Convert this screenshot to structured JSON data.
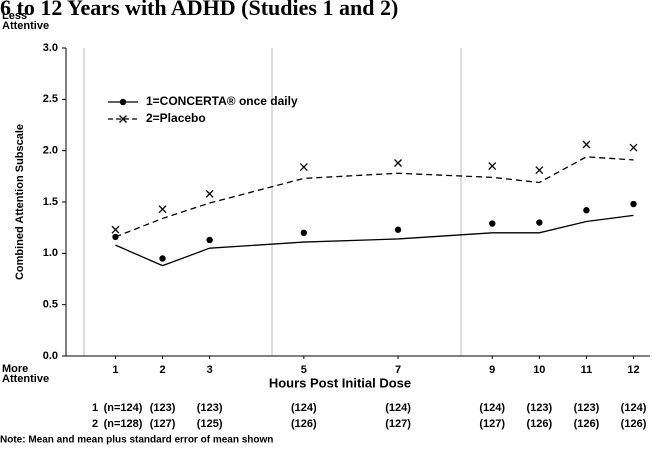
{
  "chart_data": {
    "type": "line",
    "title": "6 to 12 Years with ADHD (Studies 1 and 2)",
    "ylabel": "Combined Attention Subscale",
    "xlabel": "Hours Post Initial Dose",
    "y_top_annotation": "Less Attentive",
    "y_bottom_annotation": "More Attentive",
    "note": "Note:  Mean and mean plus standard error of mean shown",
    "x": [
      1,
      2,
      3,
      5,
      7,
      9,
      10,
      11,
      12
    ],
    "xlim": [
      -0.05,
      12.35
    ],
    "xticks": [
      1,
      2,
      3,
      5,
      7,
      9,
      10,
      11,
      12
    ],
    "ylim": [
      0,
      3
    ],
    "yticks": [
      {
        "value": 0,
        "label": "0.0"
      },
      {
        "value": 0.5,
        "label": "0.5"
      },
      {
        "value": 1,
        "label": "1.0"
      },
      {
        "value": 1.5,
        "label": "1.5"
      },
      {
        "value": 2,
        "label": "2.0"
      },
      {
        "value": 2.5,
        "label": "2.5"
      },
      {
        "value": 3,
        "label": "3.0"
      }
    ],
    "series": [
      {
        "name": "1=CONCERTA® once daily",
        "color": "#000000",
        "marker": "circle",
        "dash": false,
        "values": [
          1.08,
          0.88,
          1.05,
          1.11,
          1.14,
          1.2,
          1.2,
          1.31,
          1.37
        ],
        "errors": [
          0.08,
          0.07,
          0.08,
          0.09,
          0.09,
          0.09,
          0.1,
          0.11,
          0.11
        ]
      },
      {
        "name": "2=Placebo",
        "color": "#000000",
        "marker": "x",
        "dash": true,
        "values": [
          1.16,
          1.34,
          1.49,
          1.73,
          1.78,
          1.74,
          1.69,
          1.94,
          1.91
        ],
        "errors": [
          0.07,
          0.09,
          0.09,
          0.11,
          0.1,
          0.11,
          0.12,
          0.12,
          0.12
        ]
      }
    ],
    "n_table": [
      {
        "label": "1",
        "counts": [
          "(n=124)",
          "(123)",
          "(123)",
          "(124)",
          "(124)",
          "(124)",
          "(123)",
          "(123)",
          "(124)"
        ]
      },
      {
        "label": "2",
        "counts": [
          "(n=128)",
          "(127)",
          "(125)",
          "(126)",
          "(127)",
          "(127)",
          "(126)",
          "(126)",
          "(126)"
        ]
      }
    ]
  }
}
